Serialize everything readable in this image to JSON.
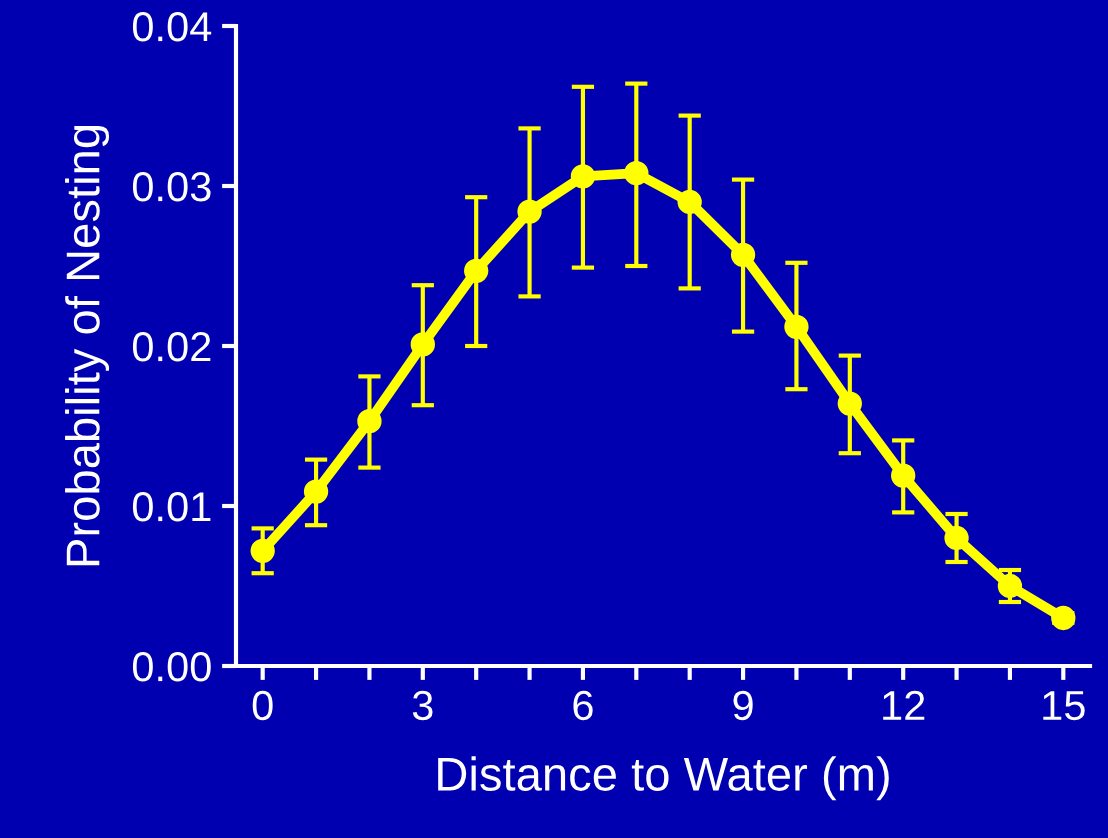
{
  "chart_data": {
    "type": "line",
    "xlabel": "Distance to Water (m)",
    "ylabel": "Probability of Nesting",
    "x": [
      0,
      1,
      2,
      3,
      4,
      5,
      6,
      7,
      8,
      9,
      10,
      11,
      12,
      13,
      14,
      15
    ],
    "series": [
      {
        "color": "#ffff00",
        "values": [
          0.0072,
          0.0109,
          0.0153,
          0.0201,
          0.0247,
          0.0284,
          0.0306,
          0.0308,
          0.029,
          0.0257,
          0.0212,
          0.0164,
          0.0119,
          0.008,
          0.005,
          0.003
        ],
        "errors": [
          [
            0.0058,
            0.0086
          ],
          [
            0.0088,
            0.0129
          ],
          [
            0.0124,
            0.0181
          ],
          [
            0.0163,
            0.0238
          ],
          [
            0.02,
            0.0293
          ],
          [
            0.0231,
            0.0336
          ],
          [
            0.0249,
            0.0362
          ],
          [
            0.025,
            0.0364
          ],
          [
            0.0236,
            0.0344
          ],
          [
            0.0209,
            0.0304
          ],
          [
            0.0173,
            0.0252
          ],
          [
            0.0133,
            0.0194
          ],
          [
            0.0096,
            0.0141
          ],
          [
            0.0065,
            0.0095
          ],
          [
            0.004,
            0.006
          ],
          [
            0.0027,
            0.0033
          ]
        ]
      }
    ],
    "marker": "circle",
    "line_style": "solid",
    "grid": false,
    "legend": false,
    "xlim": [
      -0.5,
      15.5
    ],
    "ylim": [
      0,
      0.04
    ],
    "xticks": [
      0,
      {
        "value": 1,
        "label": null
      },
      {
        "value": 2,
        "label": null
      },
      3,
      {
        "value": 4,
        "label": null
      },
      {
        "value": 5,
        "label": null
      },
      6,
      {
        "value": 7,
        "label": null
      },
      {
        "value": 8,
        "label": null
      },
      9,
      {
        "value": 10,
        "label": null
      },
      {
        "value": 11,
        "label": null
      },
      12,
      {
        "value": 13,
        "label": null
      },
      {
        "value": 14,
        "label": null
      },
      15
    ],
    "yticks": [
      {
        "value": 0,
        "label": "0.00"
      },
      {
        "value": 0.01,
        "label": "0.01"
      },
      {
        "value": 0.02,
        "label": "0.02"
      },
      {
        "value": 0.03,
        "label": "0.03"
      },
      {
        "value": 0.04,
        "label": "0.04"
      }
    ]
  }
}
